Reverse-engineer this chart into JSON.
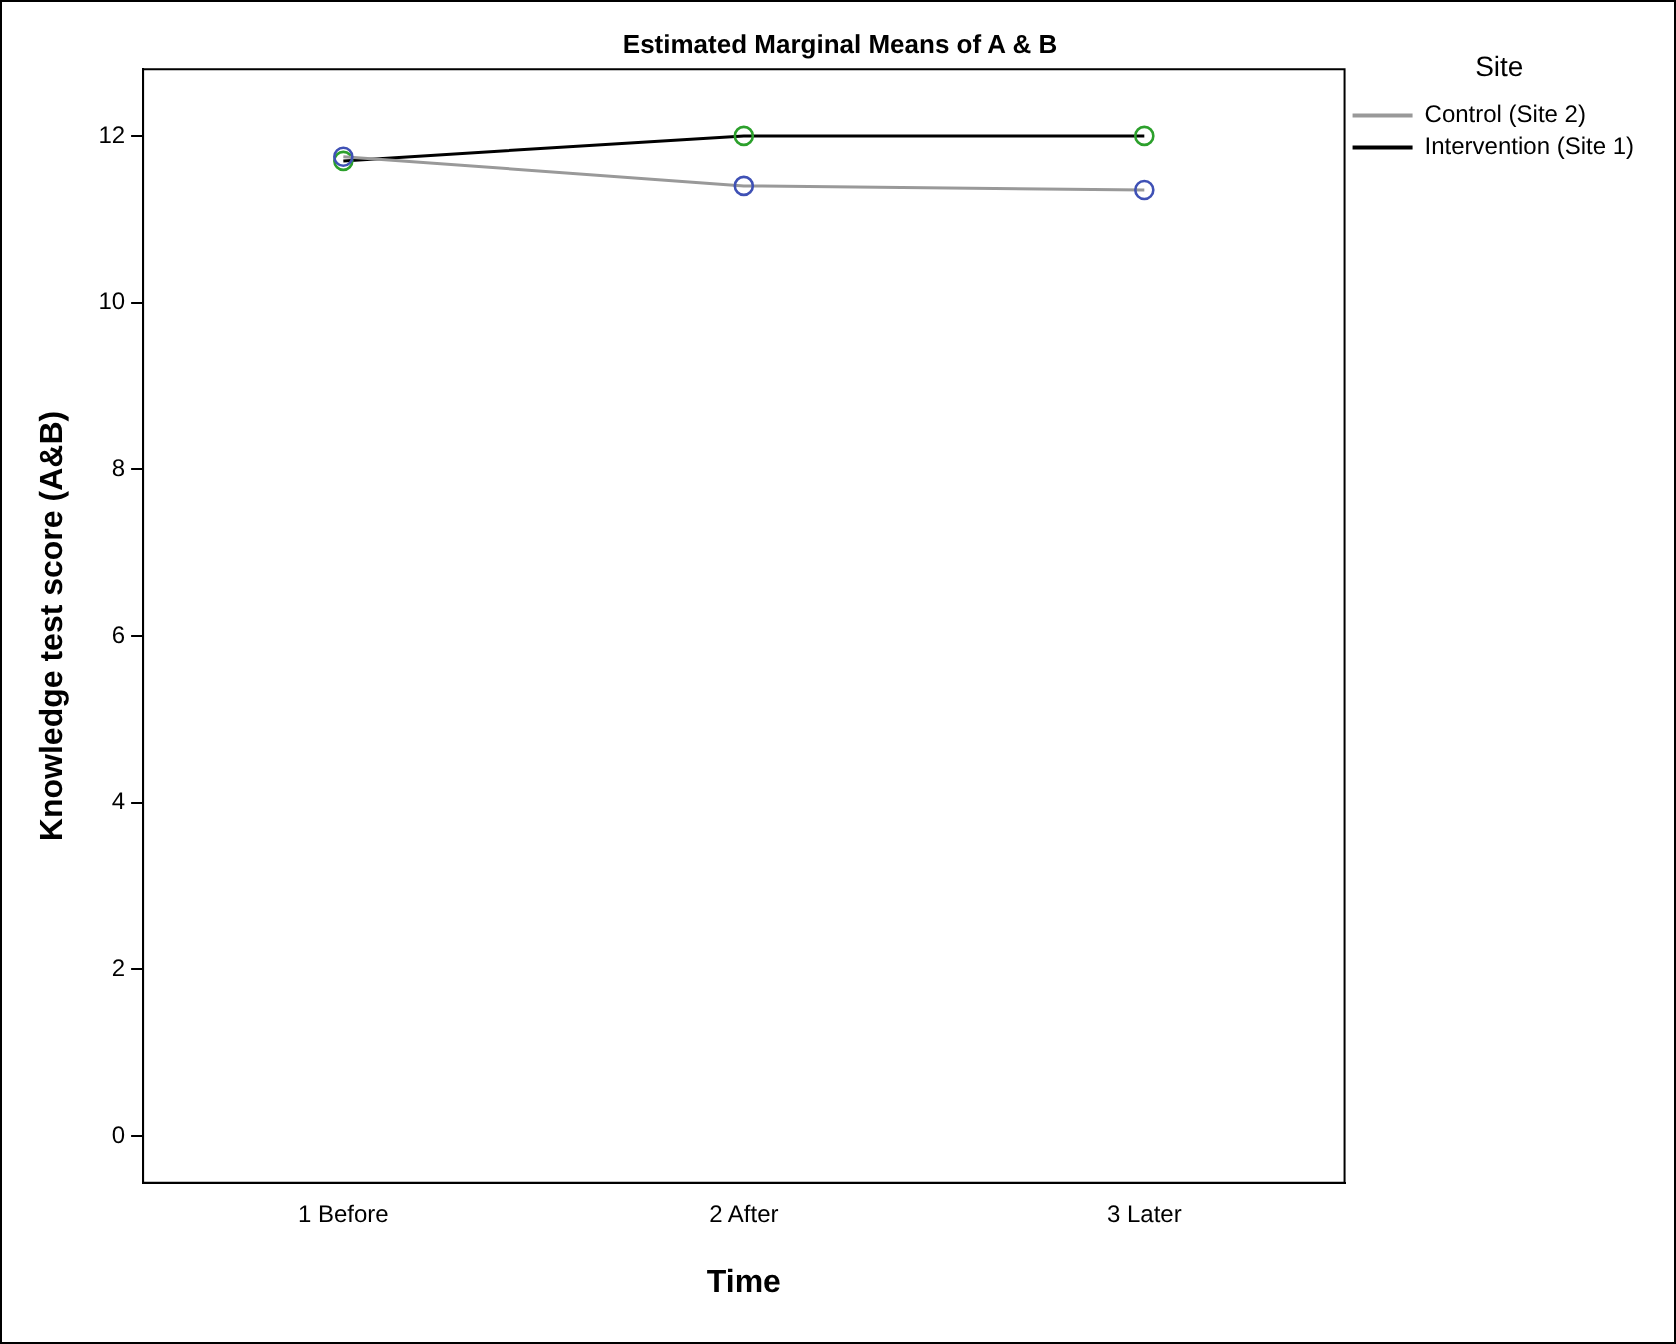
{
  "chart_data": {
    "type": "line",
    "title": "Estimated Marginal Means of A & B",
    "xlabel": "Time",
    "ylabel": "Knowledge test score (A&B)",
    "legend_title": "Site",
    "categories": [
      "1 Before",
      "2 After",
      "3 Later"
    ],
    "series": [
      {
        "name": "Control (Site 2)",
        "color": "#999999",
        "colors": [
          "#3f51b5",
          "#3f51b5",
          "#3f51b5"
        ],
        "values": [
          11.75,
          11.4,
          11.35
        ]
      },
      {
        "name": "Intervention (Site 1)",
        "color": "#000000",
        "colors": [
          "#2ca02c",
          "#2ca02c",
          "#2ca02c"
        ],
        "values": [
          11.7,
          12.0,
          12.0
        ]
      }
    ],
    "ylim": [
      -0.56,
      12.8
    ],
    "yticks": [
      0,
      2,
      4,
      6,
      8,
      10,
      12
    ],
    "grid": false,
    "legend": "right",
    "marker": "circle",
    "line_style": "solid"
  }
}
